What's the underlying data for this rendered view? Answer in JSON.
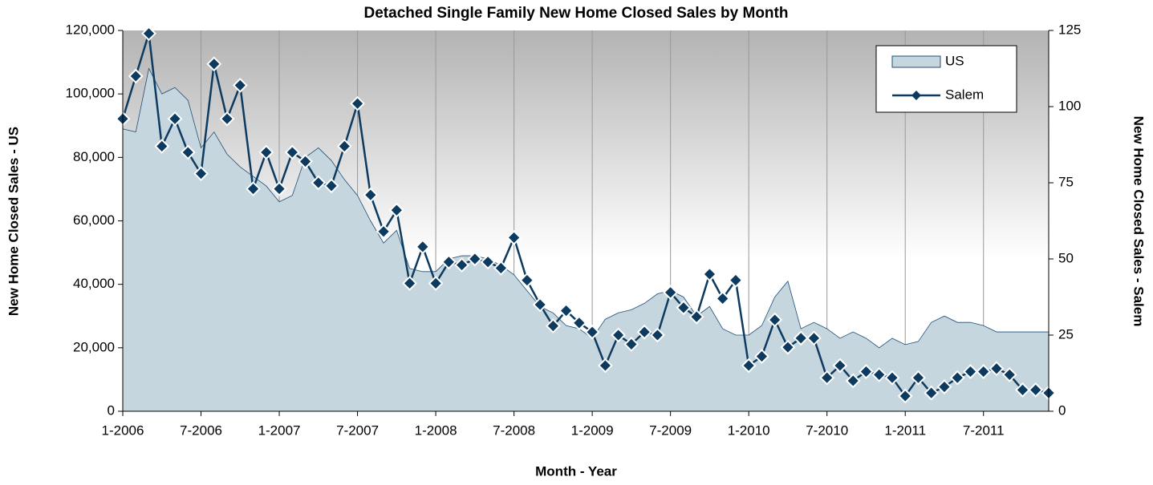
{
  "chart_data": {
    "type": "area_line",
    "title": "Detached Single Family New Home Closed Sales by Month",
    "xlabel": "Month - Year",
    "ylabel": "New Home Closed Sales - US",
    "y2label": "New Home Closed Sales - Salem",
    "categories": [
      "1-2006",
      null,
      null,
      null,
      null,
      null,
      "7-2006",
      null,
      null,
      null,
      null,
      null,
      "1-2007",
      null,
      null,
      null,
      null,
      null,
      "7-2007",
      null,
      null,
      null,
      null,
      null,
      "1-2008",
      null,
      null,
      null,
      null,
      null,
      "7-2008",
      null,
      null,
      null,
      null,
      null,
      "1-2009",
      null,
      null,
      null,
      null,
      null,
      "7-2009",
      null,
      null,
      null,
      null,
      null,
      "1-2010",
      null,
      null,
      null,
      null,
      null,
      "7-2010",
      null,
      null,
      null,
      null,
      null,
      "1-2011",
      null,
      null,
      null,
      null,
      null,
      "7-2011",
      null,
      null,
      null,
      null,
      null
    ],
    "series": [
      {
        "name": "US",
        "color": "#c5d6de",
        "type": "area",
        "values": [
          89000,
          88000,
          108000,
          100000,
          102000,
          98000,
          83000,
          88000,
          81000,
          77000,
          74000,
          71000,
          66000,
          68000,
          80000,
          83000,
          79000,
          73000,
          68000,
          60000,
          53000,
          57000,
          45000,
          44000,
          44000,
          48000,
          49000,
          49000,
          48000,
          46000,
          43000,
          38000,
          33000,
          31000,
          27000,
          26000,
          23000,
          29000,
          31000,
          32000,
          34000,
          37000,
          38000,
          36000,
          30000,
          33000,
          26000,
          24000,
          24000,
          27000,
          36000,
          41000,
          26000,
          28000,
          26000,
          23000,
          25000,
          23000,
          20000,
          23000,
          21000,
          22000,
          28000,
          30000,
          28000,
          28000,
          27000,
          25000,
          25000,
          25000,
          25000,
          25000
        ]
      },
      {
        "name": "Salem",
        "color": "#0d3a5f",
        "type": "line",
        "axis": "y2",
        "values": [
          96,
          110,
          124,
          87,
          96,
          85,
          78,
          114,
          96,
          107,
          73,
          85,
          73,
          85,
          82,
          75,
          74,
          87,
          101,
          71,
          59,
          66,
          42,
          54,
          42,
          49,
          48,
          50,
          49,
          47,
          57,
          43,
          35,
          28,
          33,
          29,
          26,
          15,
          25,
          22,
          26,
          25,
          39,
          34,
          31,
          45,
          37,
          43,
          15,
          18,
          30,
          21,
          24,
          24,
          11,
          15,
          10,
          13,
          12,
          11,
          5,
          11,
          6,
          8,
          11,
          13,
          13,
          14,
          12,
          7,
          7,
          6
        ]
      }
    ],
    "ylim": [
      0,
      120000
    ],
    "yticks": [
      0,
      {
        "value": 20000,
        "label": "20,000"
      },
      {
        "value": 40000,
        "label": "40,000"
      },
      {
        "value": 60000,
        "label": "60,000"
      },
      {
        "value": 80000,
        "label": "80,000"
      },
      {
        "value": 100000,
        "label": "100,000"
      },
      {
        "value": 120000,
        "label": "120,000"
      }
    ],
    "y2lim": [
      0,
      125
    ],
    "y2ticks": [
      0,
      25,
      50,
      75,
      100,
      125
    ],
    "legend": "top-right"
  }
}
